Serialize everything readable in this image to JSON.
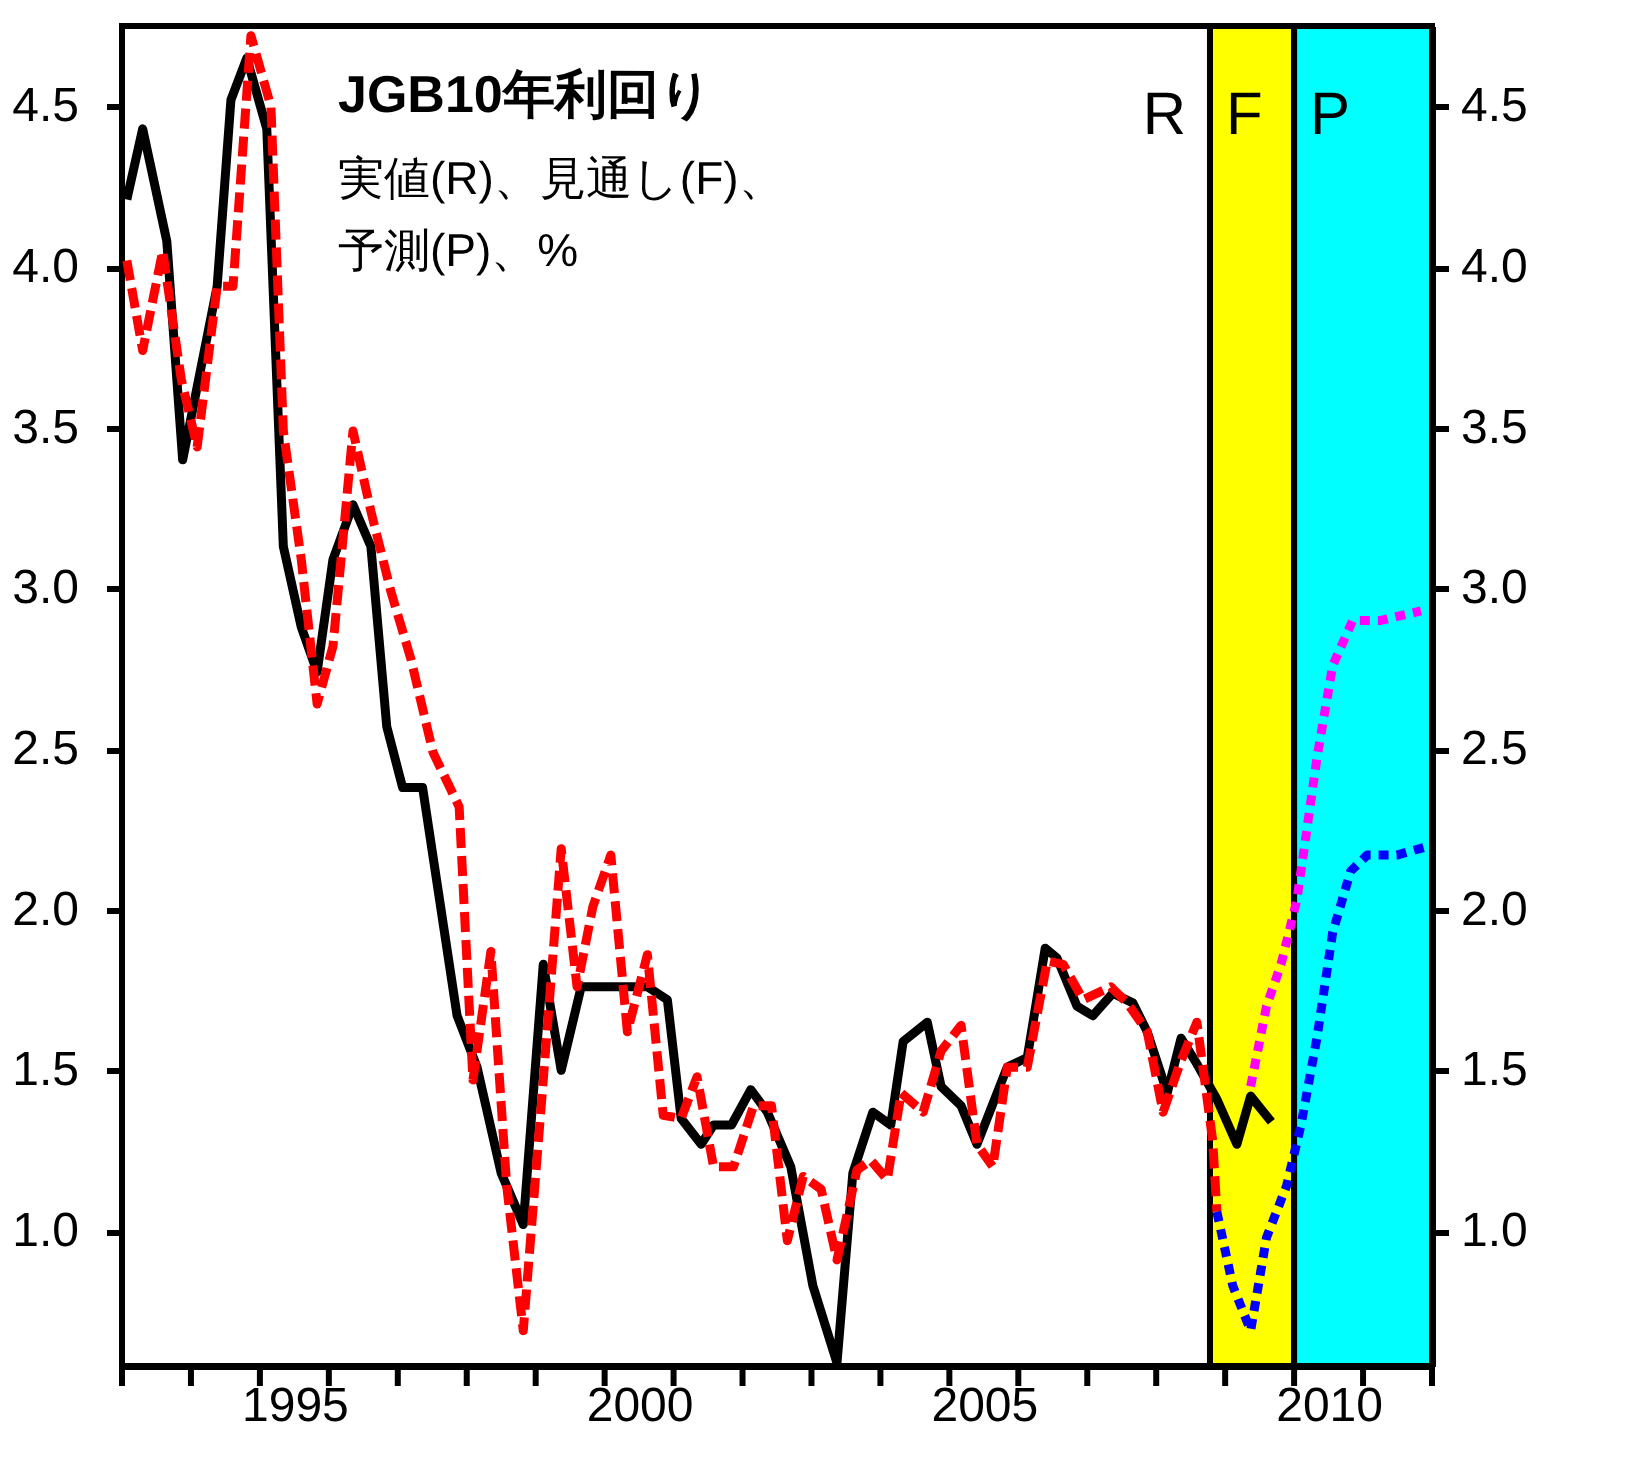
{
  "chart_data": {
    "type": "line",
    "title": "JGB10年利回り",
    "subtitle": [
      "実値(R)、見通し(F)、",
      "予測(P)、%"
    ],
    "xlim": [
      1993,
      2012
    ],
    "ylim": [
      0.58,
      4.75
    ],
    "y2lim": [
      0.58,
      4.75
    ],
    "xticks": [
      {
        "value": 1993,
        "label": null
      },
      {
        "value": 1994,
        "label": null
      },
      {
        "value": 1995,
        "label": null
      },
      {
        "value": 1995.5,
        "label": "1995"
      },
      {
        "value": 1996,
        "label": null
      },
      {
        "value": 1997,
        "label": null
      },
      {
        "value": 1998,
        "label": null
      },
      {
        "value": 1999,
        "label": null
      },
      {
        "value": 2000,
        "label": null
      },
      {
        "value": 2000.5,
        "label": "2000"
      },
      {
        "value": 2001,
        "label": null
      },
      {
        "value": 2002,
        "label": null
      },
      {
        "value": 2003,
        "label": null
      },
      {
        "value": 2004,
        "label": null
      },
      {
        "value": 2005,
        "label": null
      },
      {
        "value": 2005.5,
        "label": "2005"
      },
      {
        "value": 2006,
        "label": null
      },
      {
        "value": 2007,
        "label": null
      },
      {
        "value": 2008,
        "label": null
      },
      {
        "value": 2009,
        "label": null
      },
      {
        "value": 2010,
        "label": null
      },
      {
        "value": 2010.5,
        "label": "2010"
      },
      {
        "value": 2011,
        "label": null
      },
      {
        "value": 2012,
        "label": null
      }
    ],
    "yticks": [
      {
        "value": 1,
        "label": "1.0"
      },
      {
        "value": 1.5,
        "label": "1.5"
      },
      {
        "value": 2,
        "label": "2.0"
      },
      {
        "value": 2.5,
        "label": "2.5"
      },
      {
        "value": 3,
        "label": "3.0"
      },
      {
        "value": 3.5,
        "label": "3.5"
      },
      {
        "value": 4,
        "label": "4.0"
      },
      {
        "value": 4.5,
        "label": "4.5"
      }
    ],
    "y2ticks": [
      {
        "value": 1,
        "label": "1.0"
      },
      {
        "value": 1.5,
        "label": "1.5"
      },
      {
        "value": 2,
        "label": "2.0"
      },
      {
        "value": 2.5,
        "label": "2.5"
      },
      {
        "value": 3,
        "label": "3.0"
      },
      {
        "value": 3.5,
        "label": "3.5"
      },
      {
        "value": 4,
        "label": "4.0"
      },
      {
        "value": 4.5,
        "label": "4.5"
      }
    ],
    "bands": [
      {
        "axis": "x",
        "from": 1993,
        "to": 2008.78,
        "label": "R",
        "color": "#ffffff"
      },
      {
        "axis": "x",
        "from": 2008.78,
        "to": 2010.0,
        "label": "F",
        "color": "#ffff00"
      },
      {
        "axis": "x",
        "from": 2010.0,
        "to": 2012,
        "label": "P",
        "color": "#00ffff"
      }
    ],
    "series": [
      {
        "color": "#000000",
        "line_style": "solid",
        "x": [
          1993.07,
          1993.3,
          1993.65,
          1993.88,
          1994.38,
          1994.58,
          1994.81,
          1995.1,
          1995.34,
          1995.6,
          1995.83,
          1996.06,
          1996.35,
          1996.61,
          1996.84,
          1997.07,
          1997.36,
          1997.86,
          1998.15,
          1998.5,
          1998.82,
          1999.11,
          1999.37,
          1999.66,
          2000.12,
          2000.62,
          2000.91,
          2001.11,
          2001.4,
          2001.58,
          2001.84,
          2002.12,
          2002.36,
          2002.7,
          2003.02,
          2003.37,
          2003.6,
          2003.89,
          2004.15,
          2004.33,
          2004.68,
          2004.88,
          2005.17,
          2005.4,
          2005.84,
          2006.13,
          2006.39,
          2006.56,
          2006.85,
          2007.08,
          2007.37,
          2007.66,
          2007.87,
          2008.16,
          2008.36,
          2008.59,
          2008.88,
          2009.17,
          2009.37,
          2009.67
        ],
        "values": [
          4.21,
          4.43,
          4.08,
          3.4,
          3.94,
          4.52,
          4.65,
          4.43,
          3.13,
          2.88,
          2.74,
          3.09,
          3.26,
          3.13,
          2.57,
          2.38,
          2.38,
          1.67,
          1.51,
          1.18,
          1.02,
          1.83,
          1.5,
          1.76,
          1.76,
          1.76,
          1.72,
          1.35,
          1.27,
          1.33,
          1.33,
          1.44,
          1.37,
          1.2,
          0.83,
          0.59,
          1.18,
          1.37,
          1.33,
          1.59,
          1.65,
          1.45,
          1.39,
          1.27,
          1.51,
          1.54,
          1.88,
          1.85,
          1.7,
          1.67,
          1.74,
          1.71,
          1.62,
          1.43,
          1.6,
          1.52,
          1.41,
          1.27,
          1.42,
          1.34
        ]
      },
      {
        "color": "#ff0000",
        "line_style": "dashed",
        "x": [
          1993.07,
          1993.3,
          1993.59,
          1993.86,
          1994.09,
          1994.38,
          1994.61,
          1994.87,
          1995.16,
          1995.34,
          1995.6,
          1995.83,
          1996.06,
          1996.35,
          1996.61,
          1996.9,
          1997.19,
          1997.51,
          1997.89,
          1998.09,
          1998.35,
          1998.58,
          1998.82,
          1999.11,
          1999.37,
          1999.6,
          1999.83,
          2000.09,
          2000.33,
          2000.62,
          2000.85,
          2001.11,
          2001.34,
          2001.58,
          2001.87,
          2002.16,
          2002.42,
          2002.65,
          2002.88,
          2003.14,
          2003.37,
          2003.66,
          2003.86,
          2004.1,
          2004.3,
          2004.62,
          2004.88,
          2005.17,
          2005.4,
          2005.63,
          2005.84,
          2006.13,
          2006.42,
          2006.65,
          2006.94,
          2007.34,
          2007.58,
          2007.87,
          2008.1,
          2008.36,
          2008.59,
          2008.82,
          2008.88
        ],
        "values": [
          4.02,
          3.74,
          4.05,
          3.65,
          3.44,
          3.94,
          3.94,
          4.72,
          4.5,
          3.49,
          3.09,
          2.64,
          2.82,
          3.49,
          3.24,
          2.99,
          2.78,
          2.49,
          2.32,
          1.47,
          1.87,
          1.14,
          0.69,
          1.47,
          2.19,
          1.76,
          2.01,
          2.17,
          1.62,
          1.86,
          1.36,
          1.35,
          1.48,
          1.2,
          1.2,
          1.39,
          1.39,
          0.97,
          1.17,
          1.13,
          0.91,
          1.19,
          1.22,
          1.16,
          1.43,
          1.37,
          1.56,
          1.64,
          1.27,
          1.2,
          1.51,
          1.51,
          1.84,
          1.83,
          1.72,
          1.76,
          1.71,
          1.62,
          1.37,
          1.53,
          1.65,
          1.28,
          1.06
        ]
      },
      {
        "color": "#0000ff",
        "line_style": "dotted",
        "x": [
          2008.88,
          2009.11,
          2009.37,
          2009.6,
          2009.89,
          2010.1,
          2010.33,
          2010.56,
          2010.82,
          2011.06,
          2011.49,
          2011.99
        ],
        "values": [
          1.06,
          0.83,
          0.69,
          0.98,
          1.14,
          1.33,
          1.6,
          1.93,
          2.12,
          2.17,
          2.17,
          2.2
        ]
      },
      {
        "color": "#ff00ff",
        "line_style": "dotted",
        "x": [
          2009.37,
          2009.6,
          2009.81,
          2010.04,
          2010.1,
          2010.33,
          2010.56,
          2010.85,
          2011.26,
          2011.84
        ],
        "values": [
          1.45,
          1.7,
          1.83,
          2.03,
          2.12,
          2.47,
          2.76,
          2.9,
          2.9,
          2.93
        ]
      }
    ]
  }
}
